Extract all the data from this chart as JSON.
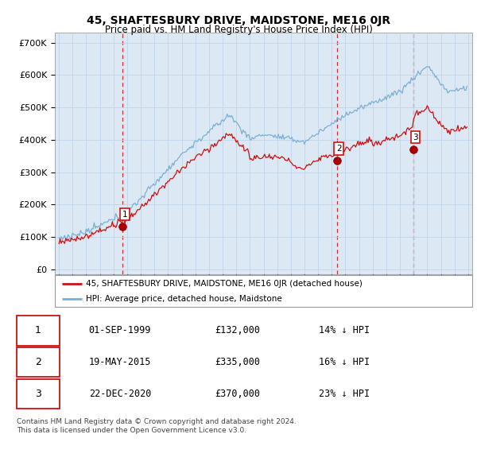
{
  "title": "45, SHAFTESBURY DRIVE, MAIDSTONE, ME16 0JR",
  "subtitle": "Price paid vs. HM Land Registry's House Price Index (HPI)",
  "yticks": [
    0,
    100000,
    200000,
    300000,
    400000,
    500000,
    600000,
    700000
  ],
  "ytick_labels": [
    "£0",
    "£100K",
    "£200K",
    "£300K",
    "£400K",
    "£500K",
    "£600K",
    "£700K"
  ],
  "ylim": [
    -15000,
    730000
  ],
  "xlim_start": 1994.7,
  "xlim_end": 2025.3,
  "hpi_color": "#7bafd4",
  "hpi_fill_color": "#dce9f5",
  "price_color": "#cc1111",
  "dashed_line_color": "#cc1111",
  "legend_label_price": "45, SHAFTESBURY DRIVE, MAIDSTONE, ME16 0JR (detached house)",
  "legend_label_hpi": "HPI: Average price, detached house, Maidstone",
  "sales": [
    {
      "num": 1,
      "date_x": 1999.67,
      "price": 132000
    },
    {
      "num": 2,
      "date_x": 2015.38,
      "price": 335000
    },
    {
      "num": 3,
      "date_x": 2020.98,
      "price": 370000
    }
  ],
  "table_rows": [
    [
      "1",
      "01-SEP-1999",
      "£132,000",
      "14% ↓ HPI"
    ],
    [
      "2",
      "19-MAY-2015",
      "£335,000",
      "16% ↓ HPI"
    ],
    [
      "3",
      "22-DEC-2020",
      "£370,000",
      "23% ↓ HPI"
    ]
  ],
  "footer": "Contains HM Land Registry data © Crown copyright and database right 2024.\nThis data is licensed under the Open Government Licence v3.0.",
  "background_color": "#ffffff",
  "chart_bg_color": "#dce9f5",
  "grid_color": "#c0d4e8"
}
